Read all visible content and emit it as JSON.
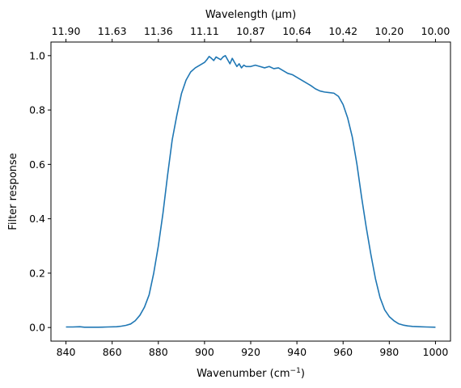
{
  "chart_data": {
    "type": "line",
    "title": "",
    "xlabel": "Wavenumber (cm",
    "xlabel_sup": "−1",
    "xlabel_suffix": ")",
    "ylabel": "Filter response",
    "top_axis_label": "Wavelength (μm)",
    "xlim": [
      833.5,
      1006.5
    ],
    "ylim": [
      -0.05,
      1.05
    ],
    "xticks": [
      840,
      860,
      880,
      900,
      920,
      940,
      960,
      980,
      1000
    ],
    "xtick_labels": [
      "840",
      "860",
      "880",
      "900",
      "920",
      "940",
      "960",
      "980",
      "1000"
    ],
    "yticks": [
      0.0,
      0.2,
      0.4,
      0.6,
      0.8,
      1.0
    ],
    "ytick_labels": [
      "0.0",
      "0.2",
      "0.4",
      "0.6",
      "0.8",
      "1.0"
    ],
    "top_ticks": [
      {
        "wavenumber": 840,
        "label": "11.90"
      },
      {
        "wavenumber": 860,
        "label": "11.63"
      },
      {
        "wavenumber": 880,
        "label": "11.36"
      },
      {
        "wavenumber": 900,
        "label": "11.11"
      },
      {
        "wavenumber": 920,
        "label": "10.87"
      },
      {
        "wavenumber": 940,
        "label": "10.64"
      },
      {
        "wavenumber": 960,
        "label": "10.42"
      },
      {
        "wavenumber": 980,
        "label": "10.20"
      },
      {
        "wavenumber": 1000,
        "label": "10.00"
      }
    ],
    "grid": false,
    "series": [
      {
        "color": "#1f77b4",
        "x": [
          840,
          843,
          846,
          848,
          850,
          854,
          858,
          862,
          864,
          866,
          868,
          870,
          872,
          874,
          876,
          878,
          880,
          882,
          884,
          886,
          888,
          890,
          892,
          894,
          896,
          898,
          900,
          901,
          902,
          903,
          904,
          905,
          906,
          907,
          908,
          909,
          910,
          911,
          912,
          913,
          914,
          915,
          916,
          917,
          918,
          920,
          922,
          924,
          926,
          928,
          930,
          932,
          934,
          936,
          938,
          940,
          942,
          944,
          946,
          948,
          950,
          952,
          954,
          956,
          958,
          960,
          962,
          964,
          966,
          968,
          970,
          972,
          974,
          976,
          978,
          980,
          982,
          984,
          986,
          988,
          990,
          993,
          996,
          1000
        ],
        "y": [
          0.002,
          0.002,
          0.003,
          0.001,
          0.001,
          0.001,
          0.002,
          0.003,
          0.005,
          0.008,
          0.013,
          0.025,
          0.045,
          0.075,
          0.12,
          0.2,
          0.3,
          0.42,
          0.56,
          0.69,
          0.78,
          0.86,
          0.91,
          0.94,
          0.955,
          0.965,
          0.975,
          0.985,
          0.997,
          0.99,
          0.982,
          0.995,
          0.99,
          0.985,
          0.995,
          1.0,
          0.985,
          0.97,
          0.99,
          0.975,
          0.96,
          0.97,
          0.955,
          0.965,
          0.96,
          0.96,
          0.965,
          0.96,
          0.955,
          0.96,
          0.952,
          0.955,
          0.945,
          0.935,
          0.93,
          0.92,
          0.91,
          0.9,
          0.89,
          0.878,
          0.87,
          0.866,
          0.864,
          0.862,
          0.85,
          0.82,
          0.77,
          0.7,
          0.6,
          0.48,
          0.37,
          0.27,
          0.18,
          0.11,
          0.065,
          0.04,
          0.025,
          0.014,
          0.009,
          0.006,
          0.004,
          0.003,
          0.002,
          0.001
        ]
      }
    ]
  }
}
